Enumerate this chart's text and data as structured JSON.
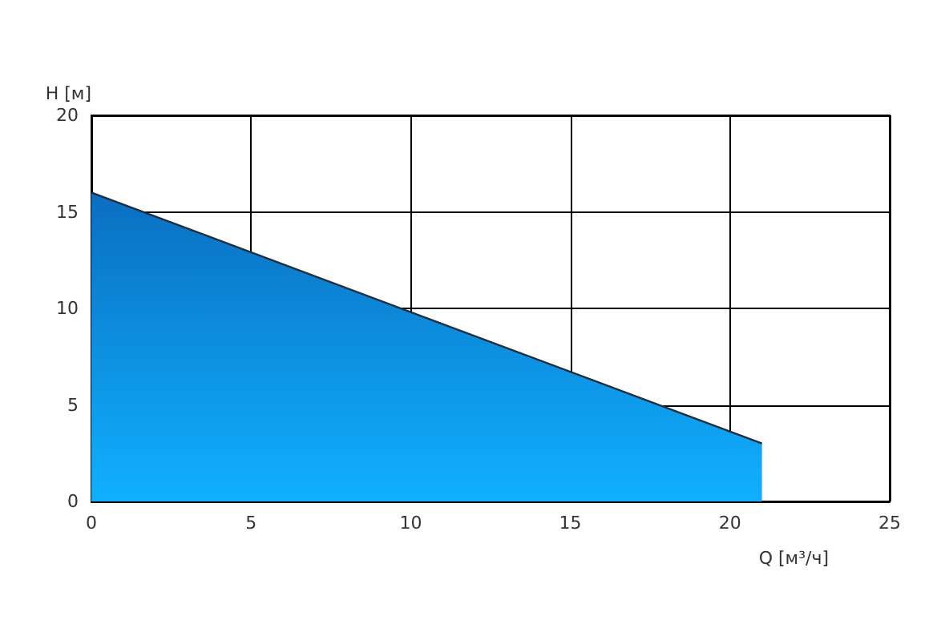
{
  "chart_data": {
    "type": "area",
    "xlabel": "Q [м³/ч]",
    "ylabel": "H [м]",
    "x": [
      0,
      21
    ],
    "values": [
      16,
      3
    ],
    "color": "#0a6ec0",
    "xlim": [
      0,
      25
    ],
    "xticks": [
      0,
      5,
      10,
      15,
      20,
      25
    ],
    "ylim": [
      0,
      20
    ],
    "yticks": [
      0,
      5,
      10,
      15,
      20
    ],
    "grid": true
  }
}
